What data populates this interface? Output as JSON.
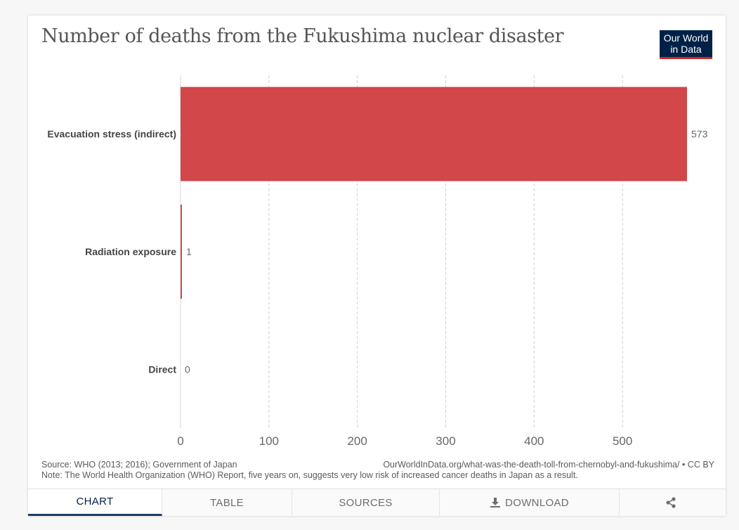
{
  "header": {
    "title": "Number of deaths from the Fukushima nuclear disaster",
    "logo_line1": "Our World",
    "logo_line2": "in Data"
  },
  "chart_data": {
    "type": "bar",
    "orientation": "horizontal",
    "title": "Number of deaths from the Fukushima nuclear disaster",
    "categories": [
      "Evacuation stress (indirect)",
      "Radiation exposure",
      "Direct"
    ],
    "values": [
      573,
      1,
      0
    ],
    "value_labels": [
      "573",
      "1",
      "0"
    ],
    "xlim": [
      0,
      573
    ],
    "xticks": [
      0,
      100,
      200,
      300,
      400,
      500
    ],
    "grid": "vertical dashed",
    "color": "#d1474a"
  },
  "footer": {
    "source": "Source: WHO (2013; 2016); Government of Japan",
    "url": "OurWorldInData.org/what-was-the-death-toll-from-chernobyl-and-fukushima/ • CC BY",
    "note": "Note: The World Health Organization (WHO) Report, five years on, suggests very low risk of increased cancer deaths in Japan as a result."
  },
  "tabs": {
    "chart": "CHART",
    "table": "TABLE",
    "sources": "SOURCES",
    "download": "DOWNLOAD"
  },
  "icons": {
    "download": "download-icon",
    "share": "share-icon"
  },
  "colors": {
    "bar": "#d1474a",
    "brand": "#002147",
    "accent": "#ce261e"
  }
}
